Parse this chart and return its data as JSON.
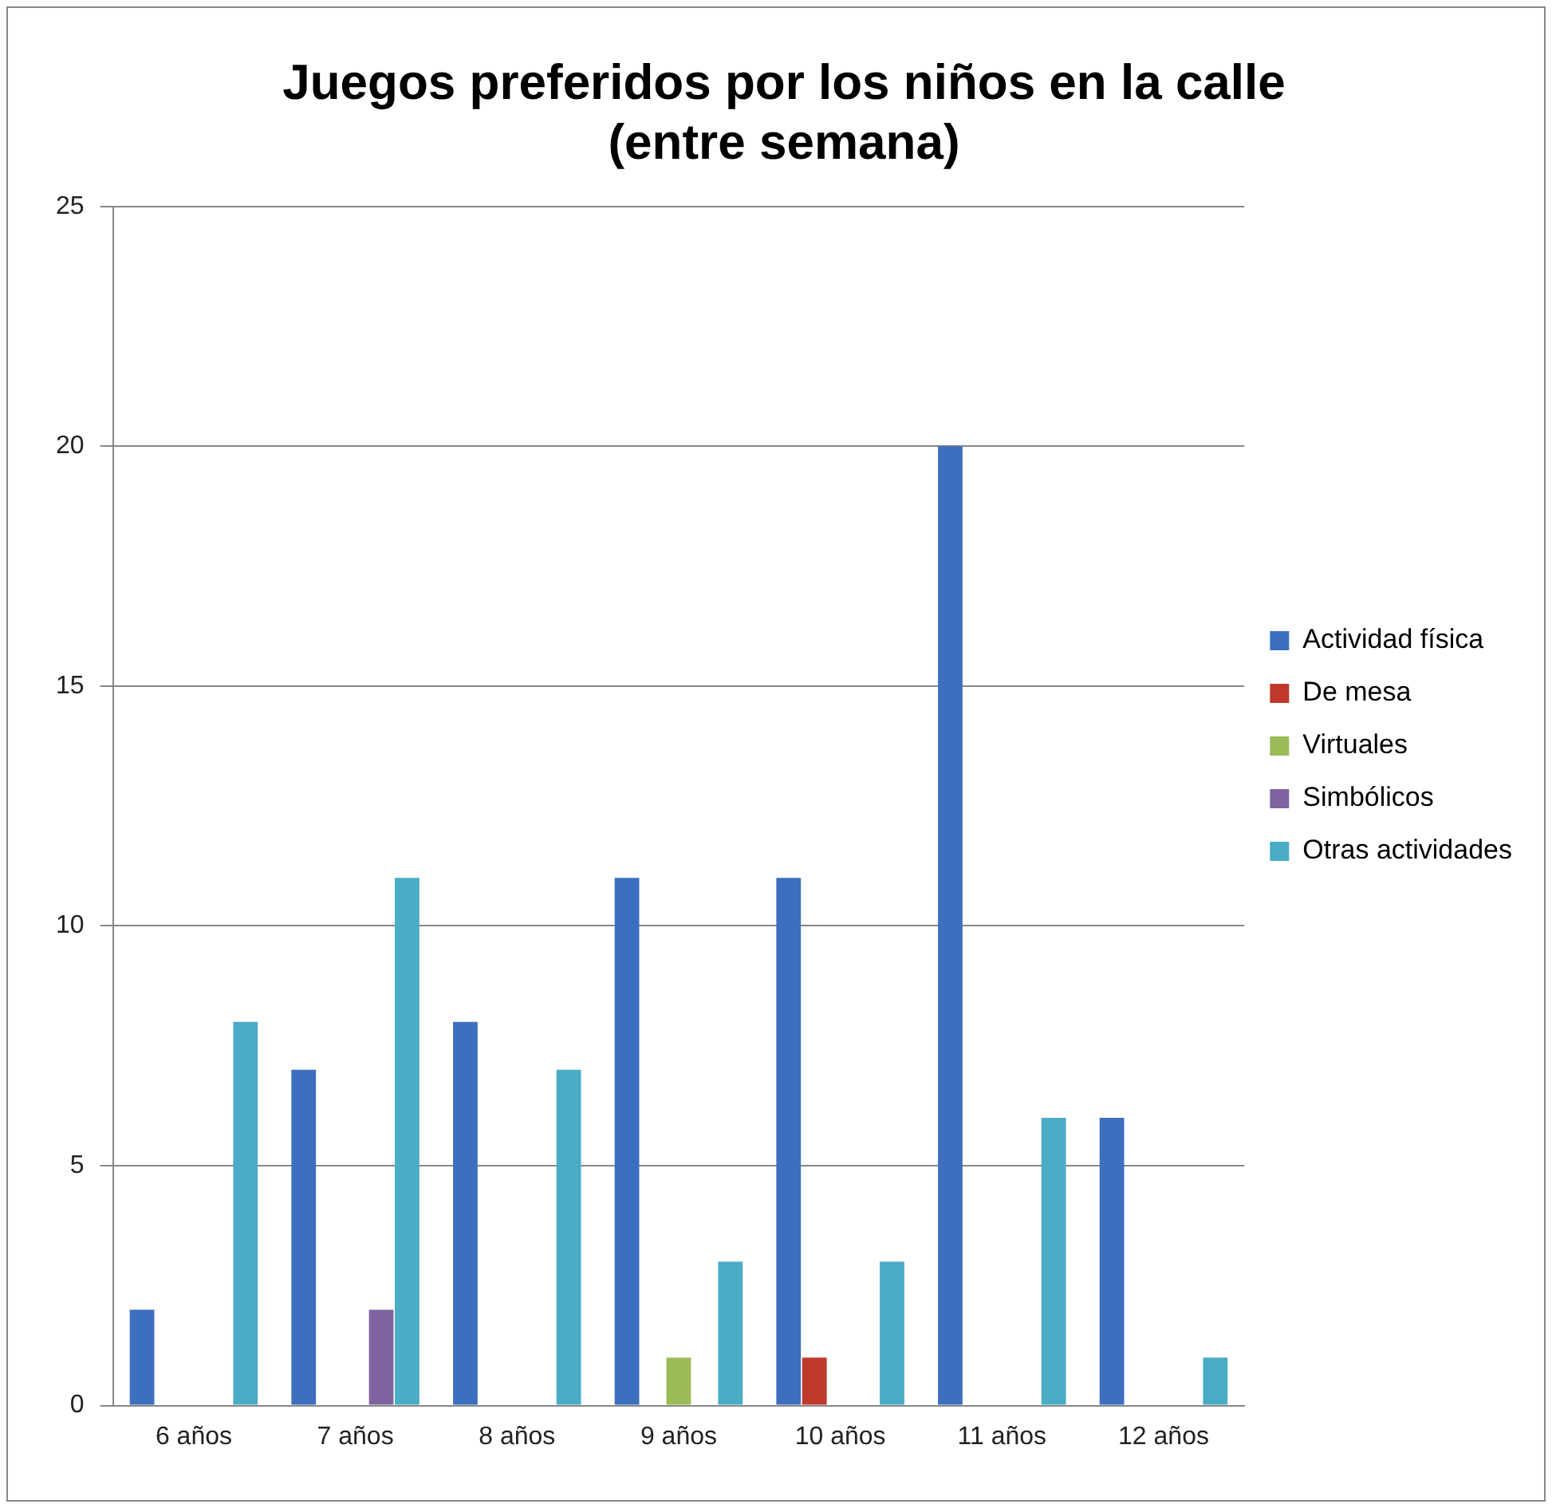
{
  "chart_data": {
    "type": "bar",
    "title": [
      "Juegos preferidos por los niños en la calle",
      "(entre semana)"
    ],
    "categories": [
      "6 años",
      "7 años",
      "8 años",
      "9 años",
      "10 años",
      "11 años",
      "12 años"
    ],
    "series": [
      {
        "name": "Actividad física",
        "color": "#3d6fbf",
        "values": [
          2,
          7,
          8,
          11,
          11,
          20,
          6
        ]
      },
      {
        "name": "De mesa",
        "color": "#c0392b",
        "values": [
          0,
          0,
          0,
          0,
          1,
          0,
          0
        ]
      },
      {
        "name": "Virtuales",
        "color": "#9bbb59",
        "values": [
          0,
          0,
          0,
          1,
          0,
          0,
          0
        ]
      },
      {
        "name": "Simbólicos",
        "color": "#8064a2",
        "values": [
          0,
          2,
          0,
          0,
          0,
          0,
          0
        ]
      },
      {
        "name": "Otras actividades",
        "color": "#4bacc6",
        "values": [
          8,
          11,
          7,
          3,
          3,
          6,
          1
        ]
      }
    ],
    "ylim": [
      0,
      25
    ],
    "yticks": [
      0,
      5,
      10,
      15,
      20,
      25
    ],
    "grid": "y",
    "legend": "right"
  }
}
